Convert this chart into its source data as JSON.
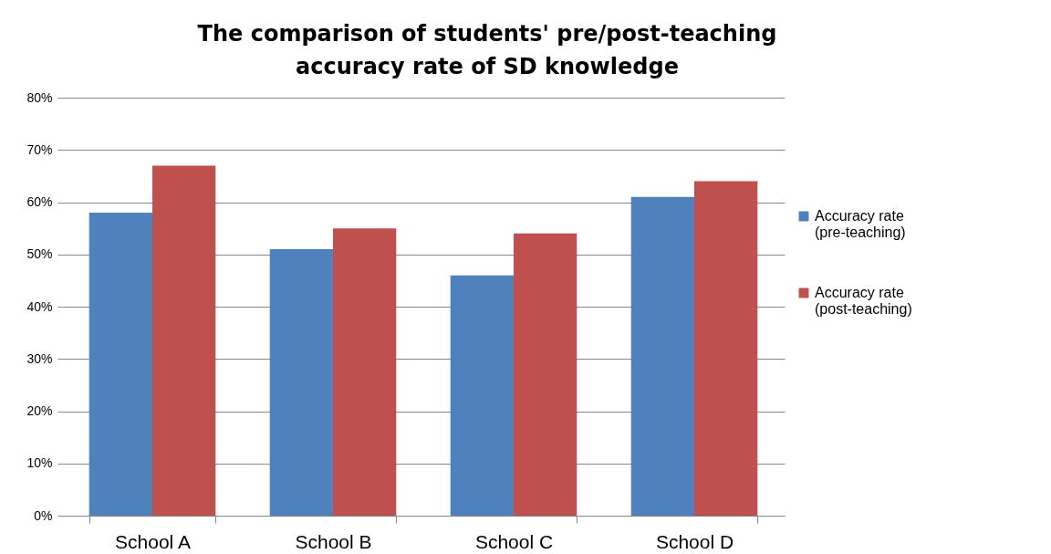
{
  "chart_data": {
    "type": "bar",
    "title": "The comparison of students' pre/post-teaching accuracy rate of SD knowledge",
    "categories": [
      "School A",
      "School B",
      "School C",
      "School D"
    ],
    "series": [
      {
        "name": "Accuracy rate (pre-teaching)",
        "color": "#4f81bd",
        "values": [
          58,
          51,
          46,
          61
        ]
      },
      {
        "name": "Accuracy rate (post-teaching)",
        "color": "#c0504d",
        "values": [
          67,
          55,
          54,
          64
        ]
      }
    ],
    "ylim": [
      0,
      80
    ],
    "yticks": [
      {
        "value": 0,
        "label": "0%"
      },
      {
        "value": 10,
        "label": "10%"
      },
      {
        "value": 20,
        "label": "20%"
      },
      {
        "value": 30,
        "label": "30%"
      },
      {
        "value": 40,
        "label": "40%"
      },
      {
        "value": 50,
        "label": "50%"
      },
      {
        "value": 60,
        "label": "60%"
      },
      {
        "value": 70,
        "label": "70%"
      },
      {
        "value": 80,
        "label": "80%"
      }
    ],
    "grid": "y",
    "legend": "right"
  }
}
